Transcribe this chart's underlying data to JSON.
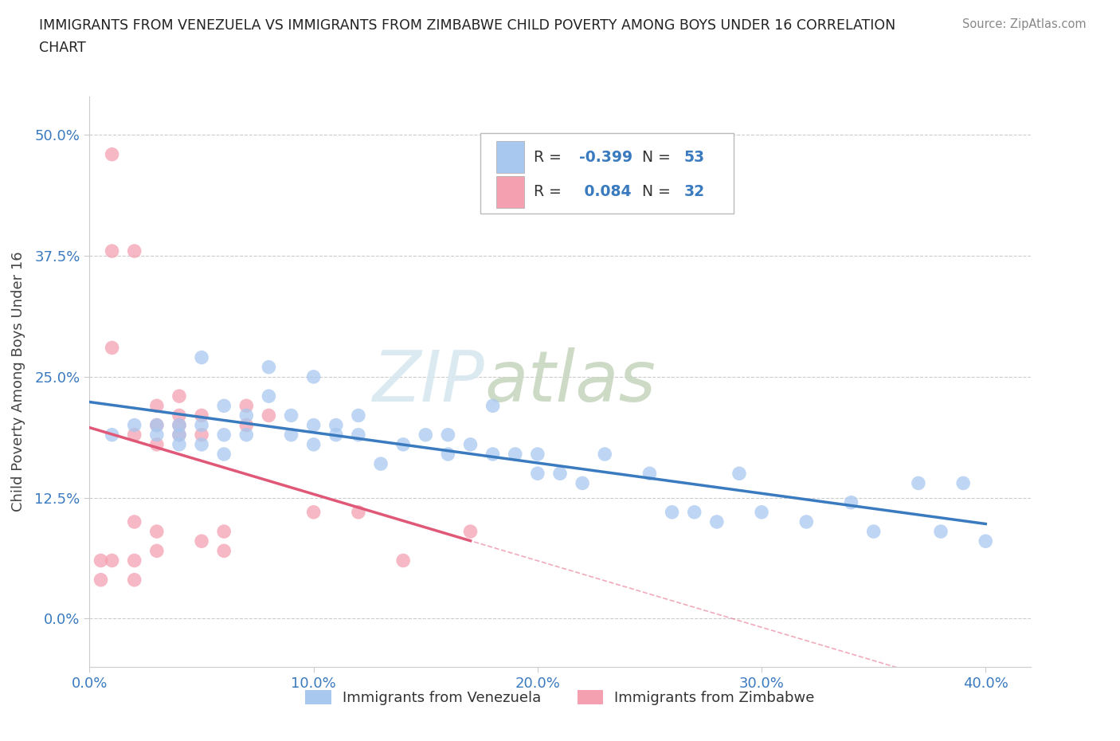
{
  "title_line1": "IMMIGRANTS FROM VENEZUELA VS IMMIGRANTS FROM ZIMBABWE CHILD POVERTY AMONG BOYS UNDER 16 CORRELATION",
  "title_line2": "CHART",
  "source": "Source: ZipAtlas.com",
  "xlabel_ticks": [
    "0.0%",
    "10.0%",
    "20.0%",
    "30.0%",
    "40.0%"
  ],
  "ylabel_ticks": [
    "0.0%",
    "12.5%",
    "25.0%",
    "37.5%",
    "50.0%"
  ],
  "xlim": [
    0.0,
    0.42
  ],
  "ylim": [
    -0.05,
    0.54
  ],
  "ylabel": "Child Poverty Among Boys Under 16",
  "legend1_label": "Immigrants from Venezuela",
  "legend2_label": "Immigrants from Zimbabwe",
  "R_venezuela": -0.399,
  "N_venezuela": 53,
  "R_zimbabwe": 0.084,
  "N_zimbabwe": 32,
  "color_venezuela": "#a8c8f0",
  "color_zimbabwe": "#f4a0b0",
  "line_color_venezuela": "#3a7abf",
  "line_color_zimbabwe": "#e05878",
  "watermark_zip": "ZIP",
  "watermark_atlas": "atlas",
  "background_color": "#ffffff",
  "venezuela_x": [
    0.01,
    0.02,
    0.03,
    0.03,
    0.04,
    0.04,
    0.04,
    0.05,
    0.05,
    0.05,
    0.06,
    0.06,
    0.06,
    0.07,
    0.07,
    0.08,
    0.08,
    0.09,
    0.09,
    0.1,
    0.1,
    0.1,
    0.11,
    0.11,
    0.12,
    0.12,
    0.13,
    0.14,
    0.15,
    0.16,
    0.16,
    0.17,
    0.18,
    0.18,
    0.19,
    0.2,
    0.2,
    0.21,
    0.22,
    0.23,
    0.25,
    0.26,
    0.27,
    0.28,
    0.29,
    0.3,
    0.32,
    0.34,
    0.35,
    0.37,
    0.38,
    0.39,
    0.4
  ],
  "venezuela_y": [
    0.19,
    0.2,
    0.19,
    0.2,
    0.19,
    0.18,
    0.2,
    0.18,
    0.2,
    0.27,
    0.19,
    0.22,
    0.17,
    0.19,
    0.21,
    0.26,
    0.23,
    0.21,
    0.19,
    0.2,
    0.18,
    0.25,
    0.2,
    0.19,
    0.21,
    0.19,
    0.16,
    0.18,
    0.19,
    0.17,
    0.19,
    0.18,
    0.17,
    0.22,
    0.17,
    0.15,
    0.17,
    0.15,
    0.14,
    0.17,
    0.15,
    0.11,
    0.11,
    0.1,
    0.15,
    0.11,
    0.1,
    0.12,
    0.09,
    0.14,
    0.09,
    0.14,
    0.08
  ],
  "zimbabwe_x": [
    0.005,
    0.005,
    0.01,
    0.01,
    0.01,
    0.01,
    0.02,
    0.02,
    0.02,
    0.02,
    0.02,
    0.03,
    0.03,
    0.03,
    0.03,
    0.03,
    0.04,
    0.04,
    0.04,
    0.04,
    0.05,
    0.05,
    0.05,
    0.06,
    0.06,
    0.07,
    0.07,
    0.08,
    0.1,
    0.12,
    0.14,
    0.17
  ],
  "zimbabwe_y": [
    0.06,
    0.04,
    0.48,
    0.38,
    0.28,
    0.06,
    0.38,
    0.19,
    0.1,
    0.06,
    0.04,
    0.22,
    0.2,
    0.18,
    0.09,
    0.07,
    0.23,
    0.21,
    0.2,
    0.19,
    0.21,
    0.19,
    0.08,
    0.09,
    0.07,
    0.22,
    0.2,
    0.21,
    0.11,
    0.11,
    0.06,
    0.09
  ]
}
